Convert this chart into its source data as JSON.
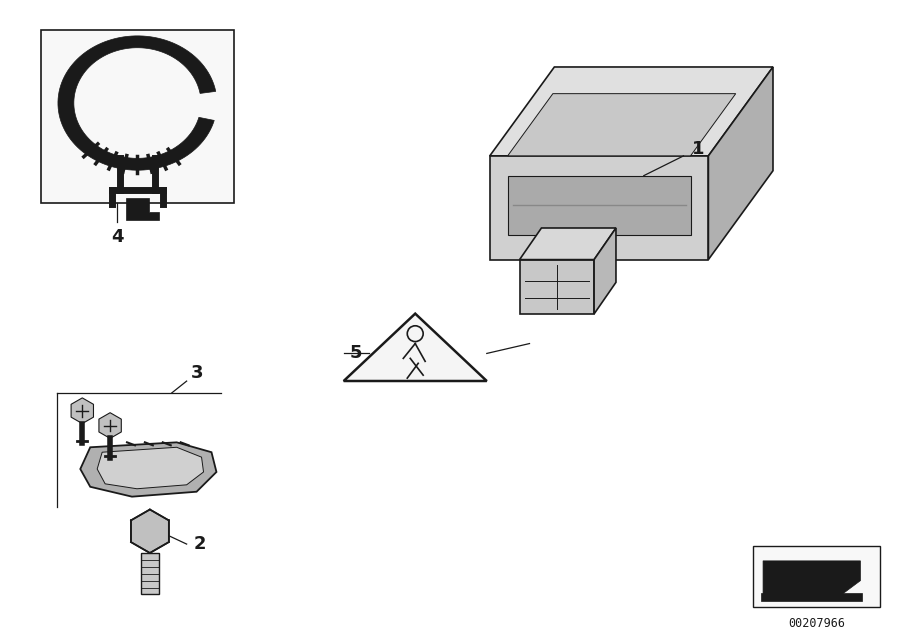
{
  "bg_color": "#ffffff",
  "fig_width": 9.0,
  "fig_height": 6.36,
  "dpi": 100,
  "dark": "#1a1a1a",
  "catalog_number": "00207966"
}
